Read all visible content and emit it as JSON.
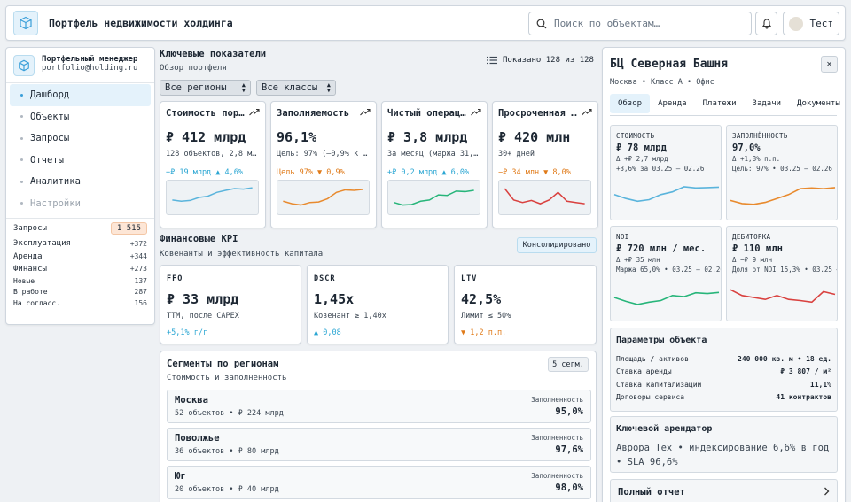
{
  "header": {
    "title": "Портфель недвижимости холдинга",
    "search_placeholder": "Поиск по объектам…",
    "user_name": "Тест"
  },
  "sidebar": {
    "manager_title": "Портфельный менеджер",
    "manager_email": "portfolio@holding.ru",
    "nav": [
      {
        "label": "Дашборд",
        "active": true
      },
      {
        "label": "Объекты"
      },
      {
        "label": "Запросы"
      },
      {
        "label": "Отчеты"
      },
      {
        "label": "Аналитика"
      },
      {
        "label": "Настройки",
        "disabled": true
      }
    ],
    "requests_label": "Запросы",
    "requests_count": "1 515",
    "categories": [
      {
        "label": "Эксплуатация",
        "value": "+372"
      },
      {
        "label": "Аренда",
        "value": "+344"
      },
      {
        "label": "Финансы",
        "value": "+273"
      }
    ],
    "statuses": [
      {
        "label": "Новые",
        "value": "137"
      },
      {
        "label": "В работе",
        "value": "287"
      },
      {
        "label": "На согласс.",
        "value": "156"
      }
    ]
  },
  "kpis": {
    "title": "Ключевые показатели",
    "subtitle": "Обзор портфеля",
    "shown": "Показано 128 из 128",
    "filter_region": "Все регионы",
    "filter_class": "Все классы",
    "cards": [
      {
        "title": "Стоимость портфеля",
        "value": "₽ 412 млрд",
        "desc": "128 объектов, 2,8 млн кв. м",
        "trend": "+₽ 19 млрд ▲ 4,6%",
        "trend_color": "#2aa6d3",
        "color": "#5ab4dc",
        "series": [
          40,
          35,
          38,
          50,
          55,
          70,
          78,
          85,
          83,
          88
        ]
      },
      {
        "title": "Заполняемость",
        "value": "96,1%",
        "desc": "Цель: 97% (–0,9% к цели)",
        "trend": "Цель 97% ▼ 0,9%",
        "trend_color": "#e07b1a",
        "color": "#e88a2e",
        "series": [
          35,
          25,
          20,
          30,
          32,
          45,
          70,
          80,
          78,
          82
        ]
      },
      {
        "title": "Чистый операционный доход",
        "value": "₽ 3,8 млрд",
        "desc": "За месяц (маржа 31,2%)",
        "trend": "+₽ 0,2 млрд ▲ 6,0%",
        "trend_color": "#2aa6d3",
        "color": "#27b57a",
        "series": [
          30,
          20,
          22,
          35,
          40,
          60,
          58,
          75,
          73,
          78
        ]
      },
      {
        "title": "Просроченная дебиторка",
        "value": "₽ 420 млн",
        "desc": "30+ дней",
        "trend": "−₽ 34 млн ▼ 8,0%",
        "trend_color": "#e07b1a",
        "color": "#d9413f",
        "series": [
          85,
          40,
          30,
          38,
          25,
          40,
          70,
          35,
          30,
          25
        ]
      }
    ]
  },
  "financial": {
    "title": "Финансовые KPI",
    "subtitle": "Ковенанты и эффективность капитала",
    "badge": "Консолидировано",
    "cards": [
      {
        "label": "FFO",
        "value": "₽ 33 млрд",
        "desc": "TTM, после CAPEX",
        "trend": "+5,1% г/г",
        "trend_color": "#2aa6d3"
      },
      {
        "label": "DSCR",
        "value": "1,45x",
        "desc": "Ковенант ≥ 1,40x",
        "trend": "▲ 0,08",
        "trend_color": "#2aa6d3"
      },
      {
        "label": "LTV",
        "value": "42,5%",
        "desc": "Лимит ≤ 50%",
        "trend": "▼ 1,2 п.п.",
        "trend_color": "#e07b1a"
      }
    ]
  },
  "segments": {
    "title": "Сегменты по регионам",
    "subtitle": "Стоимость и заполненность",
    "count": "5 сегм.",
    "occupancy_label": "Заполненность",
    "rows": [
      {
        "name": "Москва",
        "meta": "52 объектов • ₽ 224 млрд",
        "occupancy": "95,0%"
      },
      {
        "name": "Поволжье",
        "meta": "36 объектов • ₽ 80 млрд",
        "occupancy": "97,6%"
      },
      {
        "name": "Юг",
        "meta": "20 объектов • ₽ 40 млрд",
        "occupancy": "98,0%"
      }
    ]
  },
  "detail": {
    "title": "БЦ Северная Башня",
    "subtitle": "Москва • Класс A • Офис",
    "tabs": [
      "Обзор",
      "Аренда",
      "Платежи",
      "Задачи",
      "Документы"
    ],
    "metrics": [
      {
        "label": "СТОИМОСТЬ",
        "value": "₽ 78 млрд",
        "line1": "Δ +₽ 2,7 млрд",
        "line2": "+3,6% за 03.25 — 02.26",
        "color": "#5ab4dc",
        "series": [
          55,
          45,
          38,
          42,
          55,
          62,
          75,
          72,
          73,
          74
        ]
      },
      {
        "label": "ЗАПОЛНЁННОСТЬ",
        "value": "97,0%",
        "line1": "Δ +1,8% п.п.",
        "line2": "Цель: 97% • 03.25 — 02.26",
        "color": "#e88a2e",
        "series": [
          40,
          32,
          30,
          35,
          45,
          55,
          70,
          72,
          70,
          73
        ]
      },
      {
        "label": "NOI",
        "value": "₽ 720 млн / мес.",
        "line1": "Δ +₽ 35 млн",
        "line2": "Маржа 65,0% • 03.25 — 02.26",
        "color": "#27b57a",
        "series": [
          50,
          40,
          32,
          38,
          42,
          55,
          52,
          62,
          60,
          63
        ]
      },
      {
        "label": "ДЕБИТОРКА",
        "value": "₽ 110 млн",
        "line1": "Δ −₽ 9 млн",
        "line2": "Доля от NOI 15,3% • 03.25 — 02.26",
        "color": "#d9413f",
        "series": [
          70,
          55,
          50,
          45,
          55,
          45,
          42,
          38,
          65,
          58
        ]
      }
    ],
    "params_title": "Параметры объекта",
    "params": [
      {
        "label": "Площадь / активов",
        "value": "240 000 кв. м • 18 ед."
      },
      {
        "label": "Ставка аренды",
        "value": "₽ 3 807 / м²"
      },
      {
        "label": "Ставка капитализации",
        "value": "11,1%"
      },
      {
        "label": "Договоры сервиса",
        "value": "41 контрактов"
      }
    ],
    "tenant_title": "Ключевой арендатор",
    "tenant_text": "Аврора Тех • индексирование 6,6% в год • SLA 96,6%",
    "report_label": "Полный отчет"
  }
}
